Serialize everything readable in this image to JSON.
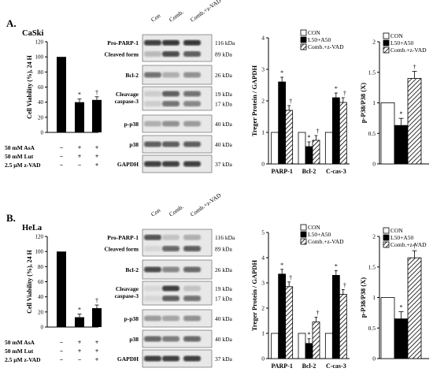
{
  "panels": [
    {
      "panel_label": "A.",
      "cell_line": "CaSki",
      "viability": {
        "ylabel": "Cell Viability (%), 24 H",
        "ticks": [
          "0",
          "20",
          "40",
          "60",
          "80",
          "100",
          "120"
        ],
        "ylim": [
          0,
          120
        ],
        "values": [
          100,
          40,
          43
        ],
        "marks": [
          "",
          "*",
          "†"
        ],
        "treatments": [
          {
            "label": "50 mM AsA",
            "signs": [
              "−",
              "+",
              "+"
            ]
          },
          {
            "label": "50 mM Lut",
            "signs": [
              "−",
              "+",
              "+"
            ]
          },
          {
            "label": "2.5 μM z-VAD",
            "signs": [
              "−",
              "−",
              "+"
            ]
          }
        ]
      },
      "blot": {
        "columns": [
          "Con",
          "Comb.",
          "Comb.+z-VAD"
        ],
        "rows": [
          {
            "label": "Pro-PARP-1",
            "sublabel": "Cleaved form",
            "kda": "116 kDa",
            "kda2": "89 kDa"
          },
          {
            "label": "Bcl-2",
            "kda": "26 kDa"
          },
          {
            "label": "Cleavage",
            "sublabel": "caspase-3",
            "kda": "19 kDa",
            "kda2": "17 kDa"
          },
          {
            "label": "p-p38",
            "kda": "40 kDa"
          },
          {
            "label": "p38",
            "kda": "40 kDa"
          },
          {
            "label": "GAPDH",
            "kda": "37 kDa"
          }
        ]
      },
      "chart_data": {
        "type": "bar",
        "ylabel": "Treger Protein / GAPDH",
        "ticks": [
          "0",
          "1",
          "2",
          "3",
          "4"
        ],
        "ylim": [
          0,
          4
        ],
        "categories": [
          "PARP-1",
          "Bcl-2",
          "C-cas-3"
        ],
        "series": [
          {
            "name": "CON",
            "values": [
              1,
              1,
              1
            ],
            "marks": [
              "",
              "",
              ""
            ]
          },
          {
            "name": "L50+A50",
            "values": [
              2.6,
              0.55,
              2.1
            ],
            "marks": [
              "*",
              "*",
              "*"
            ]
          },
          {
            "name": "Comb.+z-VAD",
            "values": [
              1.7,
              0.75,
              1.95
            ],
            "marks": [
              "†",
              "†",
              "†"
            ]
          }
        ]
      },
      "chart_data_2": {
        "type": "bar",
        "ylabel": "p-P38/P38 (X)",
        "ticks": [
          "0",
          "0.5",
          "1",
          "1.5",
          "2"
        ],
        "ylim": [
          0,
          2
        ],
        "series": [
          {
            "name": "CON",
            "values": [
              1.0
            ],
            "marks": [
              ""
            ]
          },
          {
            "name": "L50+A50",
            "values": [
              0.63
            ],
            "marks": [
              "*"
            ]
          },
          {
            "name": "Comb.+z-VAD",
            "values": [
              1.4
            ],
            "marks": [
              "†"
            ]
          }
        ]
      }
    },
    {
      "panel_label": "B.",
      "cell_line": "HeLa",
      "viability": {
        "ylabel": "Cell Viability (%), 24 H",
        "ticks": [
          "0",
          "20",
          "40",
          "60",
          "80",
          "100",
          "120"
        ],
        "ylim": [
          0,
          120
        ],
        "values": [
          100,
          13,
          25
        ],
        "marks": [
          "",
          "*",
          "†"
        ],
        "treatments": [
          {
            "label": "50 mM AsA",
            "signs": [
              "−",
              "+",
              "+"
            ]
          },
          {
            "label": "50 mM Lut",
            "signs": [
              "−",
              "+",
              "+"
            ]
          },
          {
            "label": "2.5 μM z-VAD",
            "signs": [
              "−",
              "−",
              "+"
            ]
          }
        ]
      },
      "blot": {
        "columns": [
          "Con",
          "Comb.",
          "Comb.+z-VAD"
        ],
        "rows": [
          {
            "label": "Pro-PARP-1",
            "sublabel": "Cleaved form",
            "kda": "116 kDa",
            "kda2": "89 kDa"
          },
          {
            "label": "Bcl-2",
            "kda": "26 kDa"
          },
          {
            "label": "Cleavage",
            "sublabel": "caspase-3",
            "kda": "19 kDa",
            "kda2": "17 kDa"
          },
          {
            "label": "p-p38",
            "kda": "40 kDa"
          },
          {
            "label": "p38",
            "kda": "40 kDa"
          },
          {
            "label": "GAPDH",
            "kda": "37 kDa"
          }
        ]
      },
      "chart_data": {
        "type": "bar",
        "ylabel": "Treger Protein / GAPDH",
        "ticks": [
          "0",
          "1",
          "2",
          "3",
          "4",
          "5"
        ],
        "ylim": [
          0,
          5
        ],
        "categories": [
          "PARP-1",
          "Bcl-2",
          "C-cas-3"
        ],
        "series": [
          {
            "name": "CON",
            "values": [
              1,
              1,
              1
            ],
            "marks": [
              "",
              "",
              ""
            ]
          },
          {
            "name": "L50+A50",
            "values": [
              3.35,
              0.6,
              3.3
            ],
            "marks": [
              "*",
              "*",
              "*"
            ]
          },
          {
            "name": "Comb.+z-VAD",
            "values": [
              2.85,
              1.45,
              2.55
            ],
            "marks": [
              "†",
              "†",
              "†"
            ]
          }
        ]
      },
      "chart_data_2": {
        "type": "bar",
        "ylabel": "p-P38/P38 (X)",
        "ticks": [
          "0",
          "0.5",
          "1",
          "1.5",
          "2"
        ],
        "ylim": [
          0,
          2
        ],
        "series": [
          {
            "name": "CON",
            "values": [
              1.0
            ],
            "marks": [
              ""
            ]
          },
          {
            "name": "L50+A50",
            "values": [
              0.65
            ],
            "marks": [
              "*"
            ]
          },
          {
            "name": "Comb.+z-VAD",
            "values": [
              1.65
            ],
            "marks": [
              "†"
            ]
          }
        ]
      }
    }
  ]
}
